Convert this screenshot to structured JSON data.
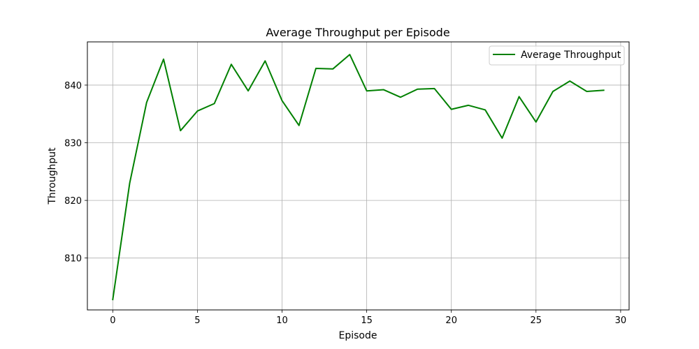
{
  "chart_data": {
    "type": "line",
    "title": "Average Throughput per Episode",
    "xlabel": "Episode",
    "ylabel": "Throughput",
    "xlim": [
      -1.5,
      30.5
    ],
    "ylim": [
      801,
      847.5
    ],
    "xticks": [
      0,
      5,
      10,
      15,
      20,
      25,
      30
    ],
    "yticks": [
      810,
      820,
      830,
      840
    ],
    "grid": true,
    "legend_position": "top-right",
    "x": [
      0,
      1,
      2,
      3,
      4,
      5,
      6,
      7,
      8,
      9,
      10,
      11,
      12,
      13,
      14,
      15,
      16,
      17,
      18,
      19,
      20,
      21,
      22,
      23,
      24,
      25,
      26,
      27,
      28,
      29
    ],
    "series": [
      {
        "name": "Average Throughput",
        "color": "#008000",
        "values": [
          802.8,
          823.0,
          837.0,
          844.5,
          832.1,
          835.5,
          836.8,
          843.6,
          839.0,
          844.2,
          837.3,
          833.0,
          842.9,
          842.8,
          845.3,
          839.0,
          839.2,
          837.9,
          839.3,
          839.4,
          835.8,
          836.5,
          835.7,
          830.8,
          838.0,
          833.6,
          838.9,
          840.7,
          838.9,
          839.1
        ]
      }
    ]
  }
}
